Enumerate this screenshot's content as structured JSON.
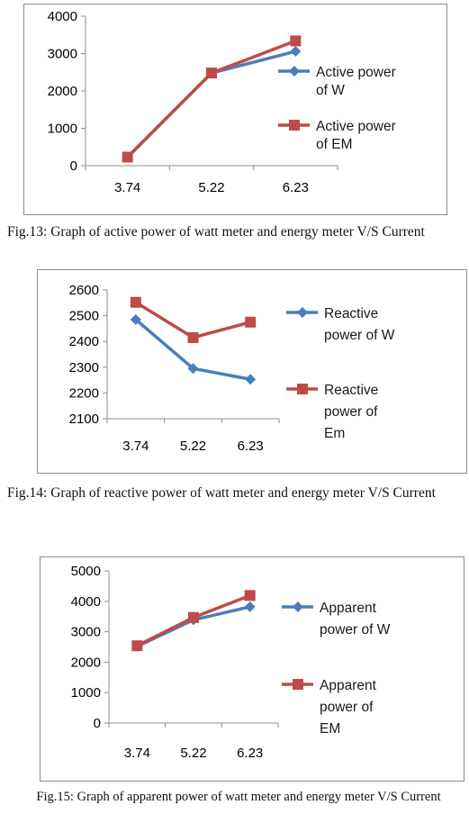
{
  "chart_data": [
    {
      "type": "line",
      "categories": [
        "3.74",
        "5.22",
        "6.23"
      ],
      "ylim": [
        0,
        4000
      ],
      "yticks": [
        0,
        1000,
        2000,
        3000,
        4000
      ],
      "grid": false,
      "legend_position": "right",
      "series": [
        {
          "name": "Active power of W",
          "legend_lines": [
            "Active power",
            "of W"
          ],
          "values": [
            230,
            2480,
            3060
          ],
          "color": "#4a7ebb",
          "marker": "diamond"
        },
        {
          "name": "Active power of EM",
          "legend_lines": [
            "Active power",
            "of EM"
          ],
          "values": [
            230,
            2480,
            3340
          ],
          "color": "#be4b48",
          "marker": "square"
        }
      ]
    },
    {
      "type": "line",
      "categories": [
        "3.74",
        "5.22",
        "6.23"
      ],
      "ylim": [
        2100,
        2600
      ],
      "yticks": [
        2100,
        2200,
        2300,
        2400,
        2500,
        2600
      ],
      "grid": false,
      "legend_position": "right",
      "series": [
        {
          "name": "Reactive power of W",
          "legend_lines": [
            "Reactive",
            "power of W"
          ],
          "values": [
            2485,
            2295,
            2253
          ],
          "color": "#4a7ebb",
          "marker": "diamond"
        },
        {
          "name": "Reactive power of Em",
          "legend_lines": [
            "Reactive",
            "power of",
            "Em"
          ],
          "values": [
            2552,
            2415,
            2475
          ],
          "color": "#be4b48",
          "marker": "square"
        }
      ]
    },
    {
      "type": "line",
      "categories": [
        "3.74",
        "5.22",
        "6.23"
      ],
      "ylim": [
        0,
        5000
      ],
      "yticks": [
        0,
        1000,
        2000,
        3000,
        4000,
        5000
      ],
      "grid": false,
      "legend_position": "right",
      "series": [
        {
          "name": "Apparent power of W",
          "legend_lines": [
            "Apparent",
            "power of W"
          ],
          "values": [
            2520,
            3390,
            3820
          ],
          "color": "#4a7ebb",
          "marker": "diamond"
        },
        {
          "name": "Apparent power of EM",
          "legend_lines": [
            "Apparent",
            "power of",
            "EM"
          ],
          "values": [
            2540,
            3470,
            4190
          ],
          "color": "#be4b48",
          "marker": "square"
        }
      ]
    }
  ],
  "captions": [
    "Fig.13: Graph of active power of watt meter and energy meter V/S Current",
    "Fig.14: Graph of reactive power of watt meter and energy meter V/S Current",
    "Fig.15: Graph of apparent power of watt meter and energy  meter V/S Current"
  ]
}
